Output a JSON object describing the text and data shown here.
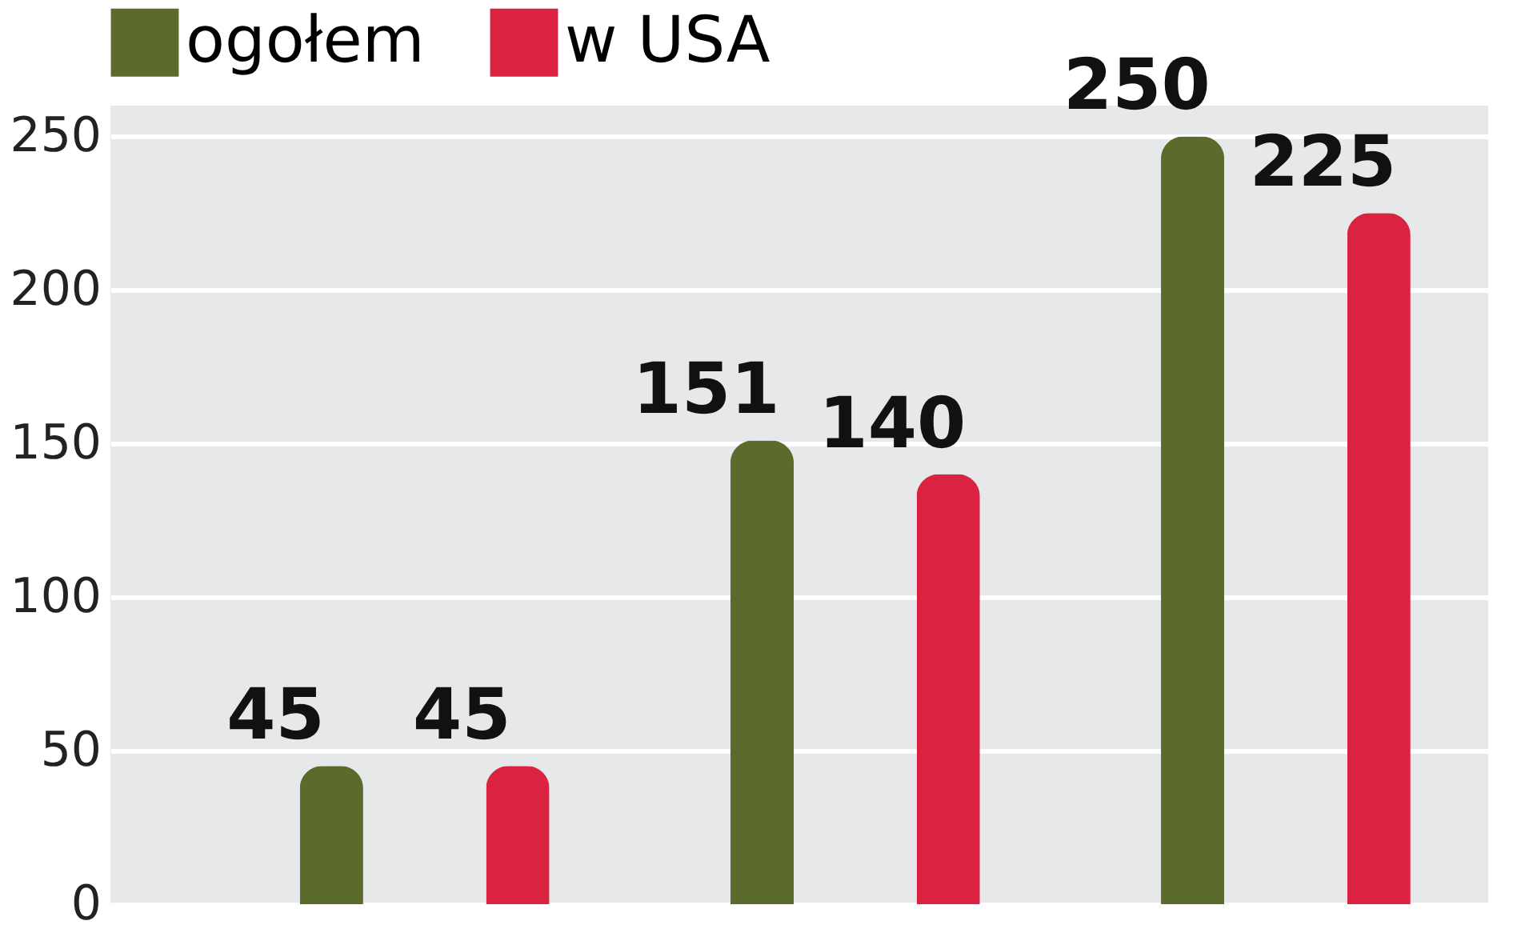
{
  "chart_data": {
    "type": "bar",
    "categories": [
      null,
      null,
      null
    ],
    "series": [
      {
        "name": "ogołem",
        "color": "#5b6b2b",
        "values": [
          45,
          151,
          250
        ]
      },
      {
        "name": "w USA",
        "color": "#d92340",
        "values": [
          45,
          140,
          225
        ]
      }
    ],
    "ylim": [
      0,
      260
    ],
    "yticks": [
      0,
      50,
      100,
      150,
      200,
      250
    ],
    "grid": "y",
    "legend": "top left",
    "data_labels": true
  }
}
